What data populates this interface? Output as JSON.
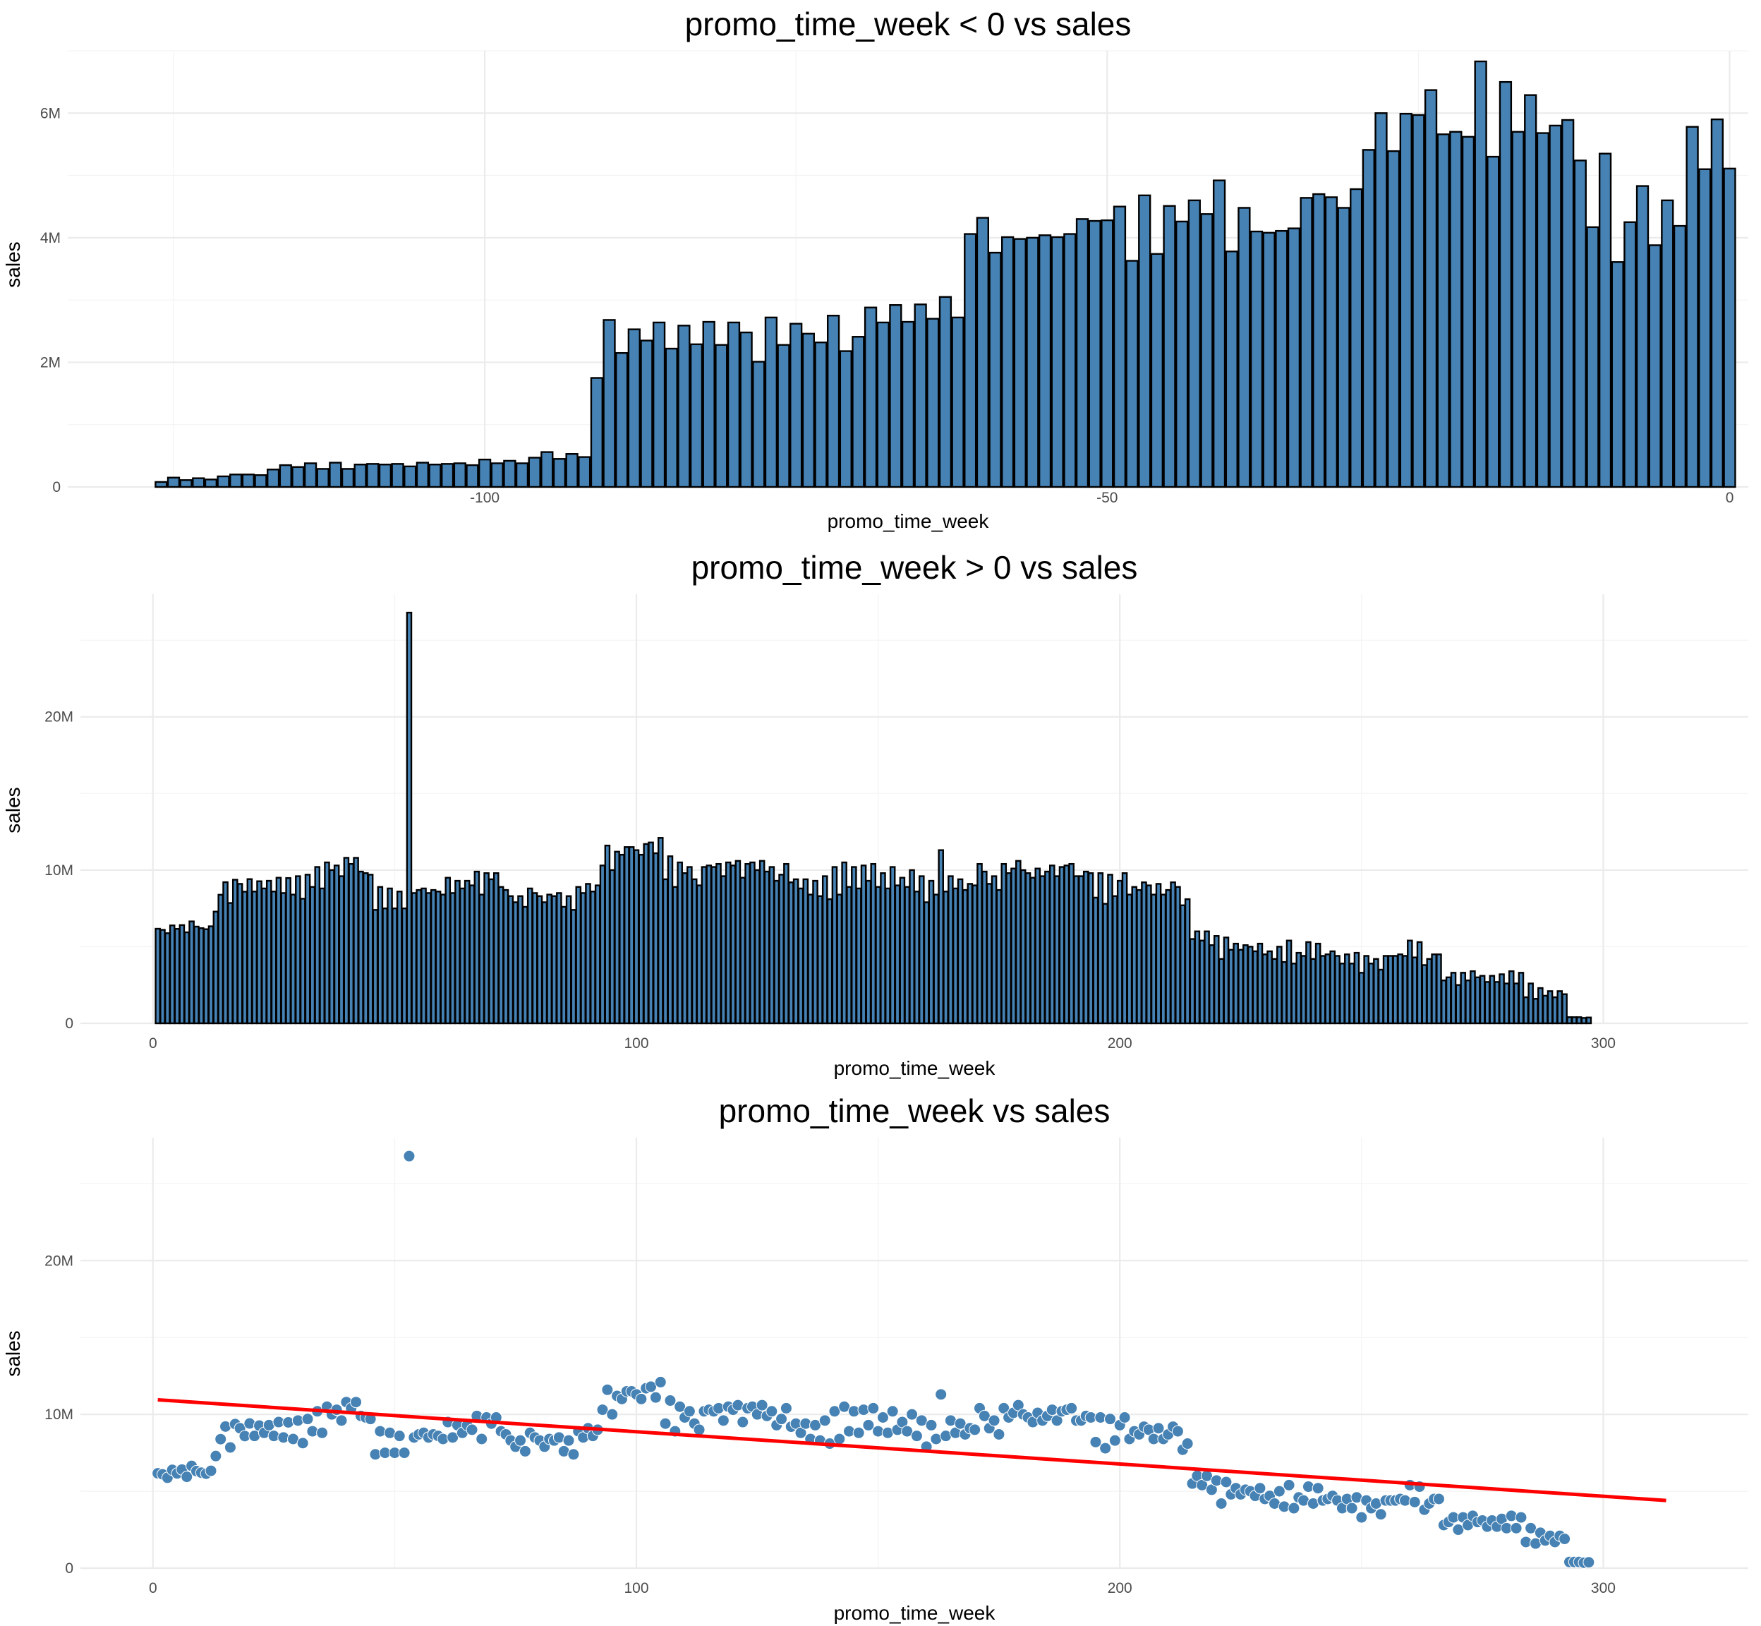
{
  "colors": {
    "bar_fill": "#4682b4",
    "bar_stroke": "#000000",
    "point": "#4682b4",
    "trend": "#ff0000",
    "grid": "#ebebeb"
  },
  "chart_data": [
    {
      "type": "bar",
      "title": "promo_time_week < 0 vs sales",
      "xlabel": "promo_time_week",
      "ylabel": "sales",
      "xlim": [
        -133.5,
        1.5
      ],
      "ylim": [
        0,
        7000000
      ],
      "xticks": [
        -100,
        -50,
        0
      ],
      "xtick_labels": [
        "-100",
        "-50",
        "0"
      ],
      "yticks": [
        0,
        2000000,
        4000000,
        6000000
      ],
      "ytick_labels": [
        "0",
        "2M",
        "4M",
        "6M"
      ],
      "x_start": -126,
      "values": [
        80000,
        150000,
        110000,
        140000,
        120000,
        170000,
        200000,
        200000,
        190000,
        280000,
        350000,
        320000,
        380000,
        290000,
        390000,
        290000,
        360000,
        370000,
        360000,
        370000,
        330000,
        390000,
        360000,
        370000,
        380000,
        350000,
        440000,
        380000,
        420000,
        380000,
        470000,
        560000,
        450000,
        530000,
        480000,
        1750000,
        2680000,
        2150000,
        2530000,
        2350000,
        2640000,
        2220000,
        2590000,
        2290000,
        2650000,
        2280000,
        2640000,
        2480000,
        2010000,
        2720000,
        2280000,
        2620000,
        2460000,
        2320000,
        2750000,
        2180000,
        2410000,
        2880000,
        2640000,
        2920000,
        2650000,
        2930000,
        2700000,
        3050000,
        2720000,
        4060000,
        4320000,
        3760000,
        4010000,
        3980000,
        4000000,
        4040000,
        4010000,
        4060000,
        4300000,
        4270000,
        4280000,
        4500000,
        3630000,
        4680000,
        3740000,
        4510000,
        4260000,
        4600000,
        4380000,
        4920000,
        3780000,
        4480000,
        4100000,
        4080000,
        4110000,
        4150000,
        4640000,
        4700000,
        4650000,
        4480000,
        4780000,
        5410000,
        6000000,
        5390000,
        5990000,
        5970000,
        6370000,
        5660000,
        5700000,
        5620000,
        6830000,
        5300000,
        6500000,
        5700000,
        6290000,
        5680000,
        5800000,
        5890000,
        5240000,
        4170000,
        5350000,
        3610000,
        4250000,
        4830000,
        3880000,
        4600000,
        4190000,
        5780000,
        5100000,
        5900000,
        5110000
      ]
    },
    {
      "type": "bar",
      "title": "promo_time_week > 0 vs sales",
      "xlabel": "promo_time_week",
      "ylabel": "sales",
      "xlim": [
        -15,
        330
      ],
      "ylim": [
        0,
        28000000
      ],
      "xticks": [
        0,
        100,
        200,
        300
      ],
      "xtick_labels": [
        "0",
        "100",
        "200",
        "300"
      ],
      "yticks": [
        0,
        10000000,
        20000000
      ],
      "ytick_labels": [
        "0",
        "10M",
        "20M"
      ],
      "x_start": 1,
      "values": [
        6170000,
        6100000,
        5880000,
        6390000,
        6160000,
        6410000,
        5940000,
        6650000,
        6310000,
        6210000,
        6140000,
        6330000,
        7290000,
        8390000,
        9210000,
        7850000,
        9370000,
        9100000,
        8590000,
        9410000,
        8600000,
        9270000,
        8800000,
        9300000,
        8600000,
        9500000,
        8500000,
        9480000,
        8400000,
        9600000,
        8130000,
        9700000,
        8900000,
        10200000,
        8800000,
        10500000,
        10000000,
        10300000,
        9600000,
        10800000,
        10400000,
        10800000,
        9900000,
        9800000,
        9700000,
        7400000,
        8900000,
        7500000,
        8800000,
        7500000,
        8600000,
        7500000,
        26800000,
        8500000,
        8700000,
        8800000,
        8500000,
        8700000,
        8600000,
        8400000,
        9500000,
        8500000,
        9300000,
        8800000,
        9300000,
        9000000,
        9900000,
        8400000,
        9800000,
        9400000,
        9800000,
        8900000,
        8700000,
        8300000,
        7900000,
        8300000,
        7600000,
        8800000,
        8500000,
        8300000,
        7900000,
        8400000,
        8300000,
        8500000,
        7600000,
        8300000,
        7400000,
        8900000,
        8500000,
        9100000,
        8600000,
        9000000,
        10300000,
        11600000,
        10000000,
        11200000,
        11000000,
        11500000,
        11500000,
        11300000,
        11000000,
        11700000,
        11800000,
        11100000,
        12100000,
        9400000,
        10900000,
        8900000,
        10500000,
        9800000,
        10200000,
        9400000,
        9000000,
        10200000,
        10300000,
        10200000,
        10400000,
        9600000,
        10500000,
        10300000,
        10600000,
        9500000,
        10400000,
        10500000,
        10000000,
        10600000,
        9900000,
        10200000,
        9300000,
        9700000,
        10400000,
        9200000,
        9400000,
        8800000,
        9400000,
        8400000,
        9300000,
        8300000,
        9600000,
        8100000,
        10200000,
        8400000,
        10500000,
        8900000,
        10200000,
        8800000,
        10300000,
        9300000,
        10400000,
        8900000,
        9800000,
        8800000,
        10200000,
        9000000,
        9500000,
        8900000,
        10000000,
        8600000,
        9600000,
        7900000,
        9300000,
        8400000,
        11300000,
        8600000,
        9600000,
        8800000,
        9400000,
        8700000,
        9100000,
        9000000,
        10400000,
        9900000,
        9100000,
        9600000,
        8700000,
        10400000,
        9800000,
        10100000,
        10600000,
        10000000,
        9800000,
        9500000,
        10100000,
        9600000,
        9900000,
        10300000,
        9600000,
        10200000,
        10300000,
        10400000,
        9600000,
        9600000,
        9900000,
        9800000,
        8200000,
        9800000,
        7800000,
        9700000,
        8300000,
        9300000,
        9800000,
        8400000,
        8900000,
        8700000,
        9200000,
        9000000,
        8400000,
        9100000,
        8400000,
        8700000,
        9200000,
        8900000,
        7700000,
        8100000,
        5500000,
        6000000,
        5400000,
        6000000,
        5100000,
        5700000,
        4200000,
        5600000,
        4800000,
        5200000,
        4800000,
        5100000,
        5000000,
        4700000,
        5200000,
        4500000,
        4700000,
        4200000,
        5000000,
        4000000,
        5400000,
        3900000,
        4600000,
        4400000,
        5300000,
        4200000,
        5200000,
        4400000,
        4500000,
        4700000,
        4400000,
        3900000,
        4500000,
        3900000,
        4600000,
        3300000,
        4400000,
        3900000,
        4200000,
        3500000,
        4400000,
        4400000,
        4400000,
        4500000,
        4400000,
        5400000,
        4300000,
        5300000,
        3800000,
        4200000,
        4500000,
        4500000,
        2800000,
        3000000,
        3300000,
        2500000,
        3300000,
        2800000,
        3400000,
        3000000,
        3100000,
        2700000,
        3100000,
        2700000,
        3200000,
        2600000,
        3400000,
        2600000,
        3300000,
        1700000,
        2600000,
        1600000,
        2300000,
        1800000,
        2100000,
        1700000,
        2100000,
        1900000,
        400000,
        400000,
        400000,
        350000,
        380000
      ]
    },
    {
      "type": "scatter",
      "title": "promo_time_week vs sales",
      "xlabel": "promo_time_week",
      "ylabel": "sales",
      "xlim": [
        -15,
        330
      ],
      "ylim": [
        0,
        28000000
      ],
      "xticks": [
        0,
        100,
        200,
        300
      ],
      "xtick_labels": [
        "0",
        "100",
        "200",
        "300"
      ],
      "yticks": [
        0,
        10000000,
        20000000
      ],
      "ytick_labels": [
        "0",
        "10M",
        "20M"
      ],
      "points_from": "same weekly sales as promo_time_week > 0 panel",
      "trend_line": {
        "x": [
          1,
          313
        ],
        "y": [
          10950000,
          4400000
        ]
      }
    }
  ]
}
